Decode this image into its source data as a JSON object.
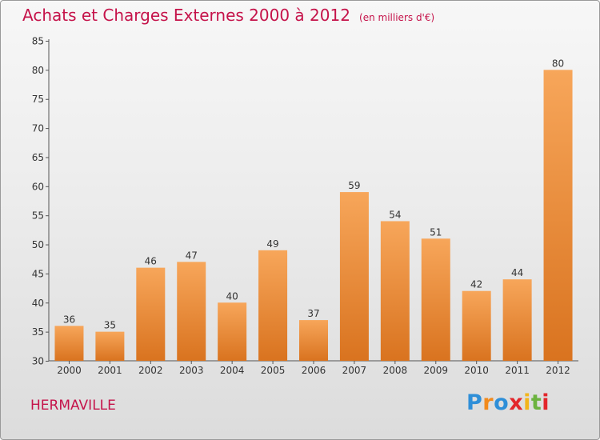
{
  "header": {
    "title": "Achats et Charges Externes 2000 à 2012",
    "subtitle": "(en milliers d'€)"
  },
  "footer": {
    "commune": "HERMAVILLE",
    "logo": "Proxiti"
  },
  "colors": {
    "title": "#c5134a",
    "bar_top": "#f7a65a",
    "bar_bottom": "#d9731f",
    "logo_letters": [
      "#2f8fd8",
      "#f28a1c",
      "#2f8fd8",
      "#e3262b",
      "#f2b51c",
      "#6cb33f",
      "#e3262b"
    ]
  },
  "chart_data": {
    "type": "bar",
    "categories": [
      "2000",
      "2001",
      "2002",
      "2003",
      "2004",
      "2005",
      "2006",
      "2007",
      "2008",
      "2009",
      "2010",
      "2011",
      "2012"
    ],
    "values": [
      36,
      35,
      46,
      47,
      40,
      49,
      37,
      59,
      54,
      51,
      42,
      44,
      80
    ],
    "title": "Achats et Charges Externes 2000 à 2012",
    "subtitle": "(en milliers d'€)",
    "xlabel": "",
    "ylabel": "",
    "ylim": [
      30,
      85
    ],
    "yticks": [
      30,
      35,
      40,
      45,
      50,
      55,
      60,
      65,
      70,
      75,
      80,
      85
    ],
    "grid": false,
    "data_labels": true
  }
}
